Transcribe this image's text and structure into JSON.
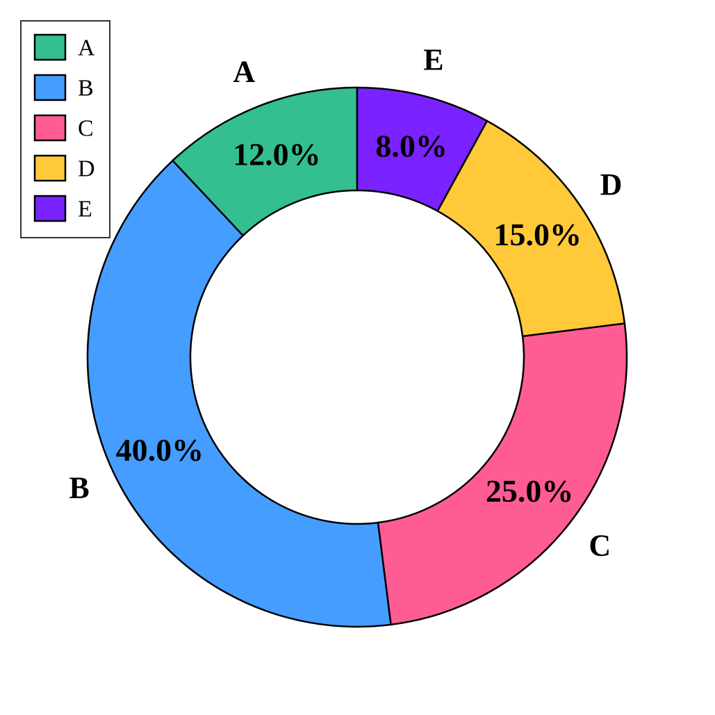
{
  "chart_data": {
    "type": "pie",
    "style": "donut",
    "categories": [
      "A",
      "B",
      "C",
      "D",
      "E"
    ],
    "values": [
      12.0,
      40.0,
      25.0,
      15.0,
      8.0
    ],
    "percent_labels": [
      "12.0%",
      "40.0%",
      "25.0%",
      "15.0%",
      "8.0%"
    ],
    "colors": [
      "#33bf8f",
      "#459dff",
      "#ff5c96",
      "#ffc93a",
      "#7a22ff"
    ],
    "start": "top",
    "direction": "counterclockwise",
    "legend": {
      "position": "top-left",
      "entries": [
        "A",
        "B",
        "C",
        "D",
        "E"
      ]
    }
  }
}
